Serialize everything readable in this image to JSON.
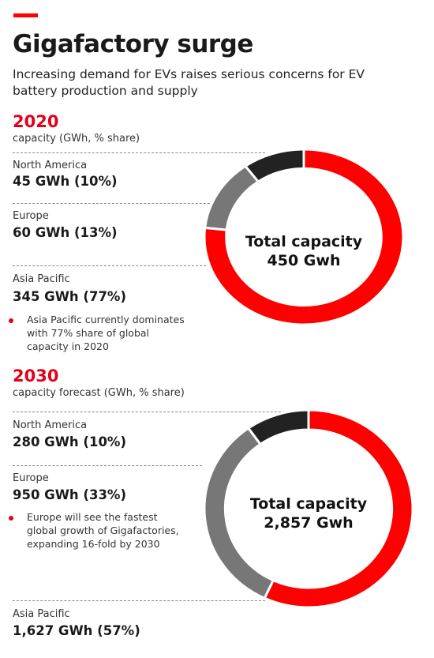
{
  "header": {
    "title": "Gigafactory surge",
    "subtitle": "Increasing demand for EVs raises serious concerns for EV battery production and supply"
  },
  "colors": {
    "accent": "#ff0000",
    "asia_pacific": "#ff0000",
    "europe": "#777777",
    "north_america": "#222222"
  },
  "panels": [
    {
      "year": "2020",
      "subtitle": "capacity (GWh, % share)",
      "center_line1": "Total capacity",
      "center_line2": "450 Gwh",
      "regions": [
        {
          "name": "North America",
          "value_text": "45 GWh (10%)"
        },
        {
          "name": "Europe",
          "value_text": "60 GWh (13%)"
        },
        {
          "name": "Asia Pacific",
          "value_text": "345 GWh (77%)"
        }
      ],
      "note": "Asia Pacific currently dominates with 77% share of global capacity in 2020"
    },
    {
      "year": "2030",
      "subtitle": "capacity forecast (GWh, % share)",
      "center_line1": "Total capacity",
      "center_line2": "2,857 Gwh",
      "regions": [
        {
          "name": "North America",
          "value_text": "280 GWh (10%)"
        },
        {
          "name": "Europe",
          "value_text": "950 GWh (33%)"
        },
        {
          "name": "Asia Pacific",
          "value_text": "1,627 GWh (57%)"
        }
      ],
      "note": "Europe will see the fastest global growth of Gigafactories, expanding 16-fold by 2030"
    }
  ],
  "chart_data": [
    {
      "type": "pie",
      "title": "2020",
      "categories": [
        "Asia Pacific",
        "Europe",
        "North America"
      ],
      "values": [
        345,
        60,
        45
      ],
      "shares": [
        77,
        13,
        10
      ],
      "unit": "GWh",
      "total": 450
    },
    {
      "type": "pie",
      "title": "2030",
      "categories": [
        "Asia Pacific",
        "Europe",
        "North America"
      ],
      "values": [
        1627,
        950,
        280
      ],
      "shares": [
        57,
        33,
        10
      ],
      "unit": "GWh",
      "total": 2857
    }
  ]
}
